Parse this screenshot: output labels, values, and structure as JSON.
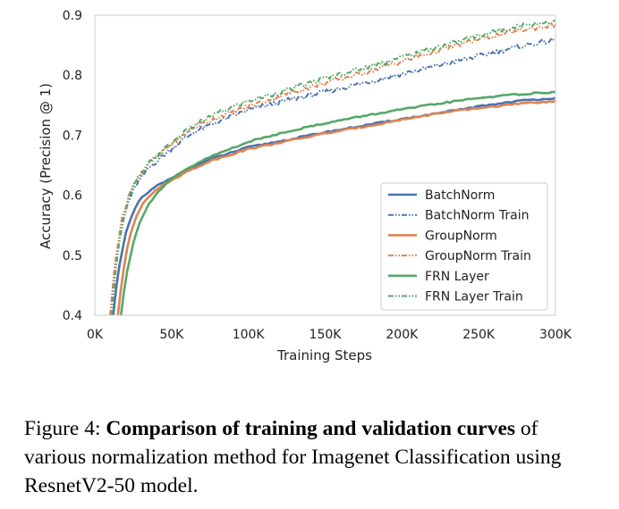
{
  "colors": {
    "batchnorm": "#4C72B0",
    "groupnorm": "#DD8452",
    "frn": "#55A868",
    "plot_background": "#FFFFFF",
    "grid": "#E5E5E5"
  },
  "chart_data": {
    "type": "line",
    "title": "",
    "xlabel": "Training Steps",
    "ylabel": "Accuracy (Precision @ 1)",
    "xlim": [
      0,
      300000
    ],
    "ylim": [
      0.4,
      0.9
    ],
    "xticks": [
      0,
      50000,
      100000,
      150000,
      200000,
      250000,
      300000
    ],
    "xtick_labels": [
      "0K",
      "50K",
      "100K",
      "150K",
      "200K",
      "250K",
      "300K"
    ],
    "yticks": [
      0.4,
      0.5,
      0.6,
      0.7,
      0.8,
      0.9
    ],
    "ytick_labels": [
      "0.4",
      "0.5",
      "0.6",
      "0.7",
      "0.8",
      "0.9"
    ],
    "grid": false,
    "legend_position": "lower right",
    "series": [
      {
        "name": "BatchNorm",
        "color_key": "batchnorm",
        "style": "solid",
        "x": [
          12000,
          15000,
          20000,
          25000,
          30000,
          40000,
          50000,
          60000,
          75000,
          100000,
          125000,
          150000,
          175000,
          200000,
          225000,
          250000,
          275000,
          300000
        ],
        "y": [
          0.4,
          0.47,
          0.535,
          0.572,
          0.595,
          0.615,
          0.628,
          0.642,
          0.66,
          0.68,
          0.692,
          0.705,
          0.716,
          0.727,
          0.737,
          0.748,
          0.757,
          0.762
        ]
      },
      {
        "name": "BatchNorm Train",
        "color_key": "batchnorm",
        "style": "dashdot",
        "x": [
          10000,
          13000,
          17000,
          22000,
          27000,
          35000,
          45000,
          55000,
          65000,
          80000,
          100000,
          125000,
          150000,
          175000,
          200000,
          225000,
          250000,
          275000,
          300000
        ],
        "y": [
          0.4,
          0.48,
          0.545,
          0.59,
          0.617,
          0.645,
          0.667,
          0.688,
          0.706,
          0.722,
          0.742,
          0.758,
          0.772,
          0.787,
          0.802,
          0.817,
          0.832,
          0.847,
          0.859
        ]
      },
      {
        "name": "GroupNorm",
        "color_key": "groupnorm",
        "style": "solid",
        "x": [
          15000,
          18000,
          22000,
          27000,
          32000,
          40000,
          50000,
          60000,
          75000,
          100000,
          125000,
          150000,
          175000,
          200000,
          225000,
          250000,
          275000,
          300000
        ],
        "y": [
          0.4,
          0.465,
          0.525,
          0.565,
          0.59,
          0.61,
          0.625,
          0.639,
          0.657,
          0.677,
          0.69,
          0.703,
          0.714,
          0.726,
          0.737,
          0.745,
          0.752,
          0.757
        ]
      },
      {
        "name": "GroupNorm Train",
        "color_key": "groupnorm",
        "style": "dashdot",
        "x": [
          10000,
          13000,
          17000,
          22000,
          27000,
          35000,
          45000,
          55000,
          65000,
          80000,
          100000,
          125000,
          150000,
          175000,
          200000,
          225000,
          250000,
          275000,
          300000
        ],
        "y": [
          0.4,
          0.485,
          0.555,
          0.6,
          0.626,
          0.652,
          0.675,
          0.695,
          0.713,
          0.73,
          0.748,
          0.769,
          0.787,
          0.804,
          0.823,
          0.842,
          0.86,
          0.874,
          0.884
        ]
      },
      {
        "name": "FRN Layer",
        "color_key": "frn",
        "style": "solid",
        "x": [
          17000,
          20000,
          25000,
          30000,
          35000,
          42000,
          50000,
          60000,
          75000,
          100000,
          125000,
          150000,
          175000,
          200000,
          225000,
          250000,
          275000,
          300000
        ],
        "y": [
          0.4,
          0.46,
          0.52,
          0.56,
          0.585,
          0.608,
          0.627,
          0.644,
          0.664,
          0.689,
          0.706,
          0.72,
          0.732,
          0.743,
          0.753,
          0.762,
          0.768,
          0.772
        ]
      },
      {
        "name": "FRN Layer Train",
        "color_key": "frn",
        "style": "dashdot",
        "x": [
          11000,
          14000,
          18000,
          23000,
          28000,
          36000,
          46000,
          56000,
          66000,
          80000,
          100000,
          125000,
          150000,
          175000,
          200000,
          225000,
          250000,
          275000,
          300000
        ],
        "y": [
          0.4,
          0.485,
          0.555,
          0.602,
          0.628,
          0.655,
          0.678,
          0.7,
          0.718,
          0.737,
          0.757,
          0.775,
          0.795,
          0.812,
          0.83,
          0.848,
          0.866,
          0.882,
          0.89
        ]
      }
    ]
  },
  "caption": {
    "lead": "Figure 4: ",
    "bold": "Comparison of training and validation curves",
    "rest": " of various normalization method for Imagenet Classification using ResnetV2-50 model."
  }
}
